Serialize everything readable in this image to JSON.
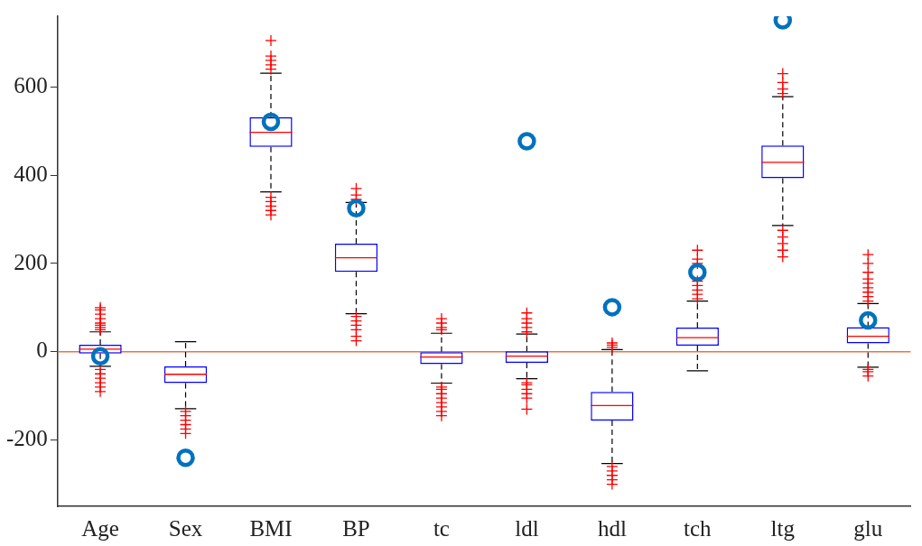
{
  "chart_data": {
    "type": "box",
    "categories": [
      "Age",
      "Sex",
      "BMI",
      "BP",
      "tc",
      "ldl",
      "hdl",
      "tch",
      "ltg",
      "glu"
    ],
    "ylim": [
      -350,
      760
    ],
    "yticks": [
      -200,
      0,
      200,
      400,
      600
    ],
    "grid": false,
    "legend": false,
    "ref_lines": [
      {
        "axis": "y",
        "value": 0,
        "color": "#e9734f"
      }
    ],
    "series": [
      {
        "color": "#0000ff",
        "boxes": [
          {
            "low": -33,
            "q1": -4,
            "median": 6,
            "q3": 16,
            "high": 45,
            "outliers": [
              50,
              55,
              60,
              65,
              75,
              85,
              95,
              100,
              -40,
              -50,
              -60,
              -70,
              -80,
              -90
            ]
          },
          {
            "low": -129,
            "q1": -71,
            "median": -51,
            "q3": -33,
            "high": 23,
            "outliers": [
              -135,
              -145,
              -155,
              -165,
              -175,
              -185
            ]
          },
          {
            "low": 362,
            "q1": 464,
            "median": 497,
            "q3": 531,
            "high": 631,
            "outliers": [
              640,
              650,
              660,
              670,
              705,
              350,
              340,
              330,
              320,
              310
            ]
          },
          {
            "low": 86,
            "q1": 181,
            "median": 213,
            "q3": 245,
            "high": 338,
            "outliers": [
              345,
              355,
              370,
              80,
              70,
              60,
              50,
              35,
              25
            ]
          },
          {
            "low": -71,
            "q1": -28,
            "median": -12,
            "q3": 0,
            "high": 42,
            "outliers": [
              50,
              55,
              65,
              75,
              -80,
              -85,
              -95,
              -105,
              -115,
              -125,
              -135,
              -145
            ]
          },
          {
            "low": -61,
            "q1": -25,
            "median": -10,
            "q3": 1,
            "high": 40,
            "outliers": [
              45,
              55,
              65,
              75,
              88,
              -70,
              -75,
              -85,
              -95,
              -105,
              -130
            ]
          },
          {
            "low": -253,
            "q1": -156,
            "median": -122,
            "q3": -91,
            "high": 5,
            "outliers": [
              10,
              15,
              20,
              -260,
              -270,
              -280,
              -290,
              -300
            ]
          },
          {
            "low": -43,
            "q1": 14,
            "median": 32,
            "q3": 55,
            "high": 115,
            "outliers": [
              120,
              130,
              140,
              150,
              160,
              200,
              210,
              230
            ]
          },
          {
            "low": 286,
            "q1": 393,
            "median": 429,
            "q3": 467,
            "high": 578,
            "outliers": [
              585,
              595,
              610,
              630,
              275,
              260,
              245,
              230,
              215
            ]
          },
          {
            "low": -35,
            "q1": 19,
            "median": 35,
            "q3": 56,
            "high": 109,
            "outliers": [
              115,
              125,
              135,
              145,
              155,
              165,
              180,
              200,
              220,
              -40,
              -45,
              -55
            ]
          }
        ]
      },
      {
        "type": "scatter",
        "marker": "circle",
        "color": "#0072bd",
        "x": [
          "Age",
          "Sex",
          "BMI",
          "BP",
          "tc",
          "ldl",
          "hdl",
          "tch",
          "ltg",
          "glu"
        ],
        "values": [
          -10,
          -240,
          521,
          325,
          null,
          477,
          101,
          180,
          751,
          71
        ]
      }
    ]
  }
}
